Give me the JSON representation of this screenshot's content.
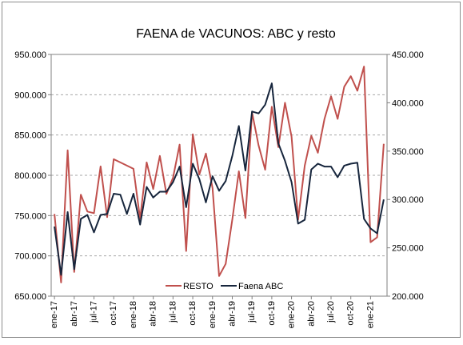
{
  "chart_data": {
    "type": "line",
    "title": "FAENA de VACUNOS: ABC y resto",
    "x_tick_labels": [
      "ene-17",
      "abr-17",
      "jul-17",
      "oct-17",
      "ene-18",
      "abr-18",
      "jul-18",
      "oct-18",
      "ene-19",
      "abr-19",
      "jul-19",
      "oct-19",
      "ene-20",
      "abr-20",
      "jul-20",
      "oct-20",
      "ene-21"
    ],
    "x_tick_indices": [
      0,
      3,
      6,
      9,
      12,
      15,
      18,
      21,
      24,
      27,
      30,
      33,
      36,
      39,
      42,
      45,
      48
    ],
    "y_left": {
      "range": [
        650000,
        950000
      ],
      "ticks": [
        650000,
        700000,
        750000,
        800000,
        850000,
        900000,
        950000
      ],
      "tick_labels": [
        "650.000",
        "700.000",
        "750.000",
        "800.000",
        "850.000",
        "900.000",
        "950.000"
      ]
    },
    "y_right": {
      "range": [
        200000,
        450000
      ],
      "ticks": [
        200000,
        250000,
        300000,
        350000,
        400000,
        450000
      ],
      "tick_labels": [
        "200.000",
        "250.000",
        "300.000",
        "350.000",
        "400.000",
        "450.000"
      ]
    },
    "grid": "horizontal dashed",
    "legend_position": "bottom-inside",
    "series": [
      {
        "name": "RESTO",
        "axis": "left",
        "color": "#C0504D",
        "values": [
          752000,
          667000,
          831000,
          680000,
          776000,
          755000,
          753000,
          811000,
          748000,
          820000,
          816000,
          812000,
          808000,
          746000,
          816000,
          783000,
          824000,
          777000,
          797000,
          838000,
          706000,
          851000,
          801000,
          827000,
          784000,
          675000,
          690000,
          745000,
          805000,
          747000,
          878000,
          837000,
          807000,
          885000,
          835000,
          890000,
          848000,
          745000,
          812000,
          849000,
          828000,
          870000,
          898000,
          870000,
          910000,
          923000,
          905000,
          935000,
          717000,
          723000,
          839000
        ]
      },
      {
        "name": "Faena ABC",
        "axis": "right",
        "color": "#17263D",
        "values": [
          272000,
          222000,
          287000,
          228000,
          280000,
          284000,
          266000,
          284000,
          285000,
          306000,
          305000,
          285000,
          306000,
          274000,
          313000,
          302000,
          308000,
          308000,
          318000,
          334000,
          292000,
          337000,
          321000,
          297000,
          324000,
          309000,
          319000,
          345000,
          376000,
          330000,
          391000,
          389000,
          398000,
          420000,
          358000,
          340000,
          318000,
          275000,
          279000,
          331000,
          337000,
          334000,
          334000,
          323000,
          335000,
          337000,
          338000,
          280000,
          270000,
          265000,
          300000
        ]
      }
    ]
  }
}
